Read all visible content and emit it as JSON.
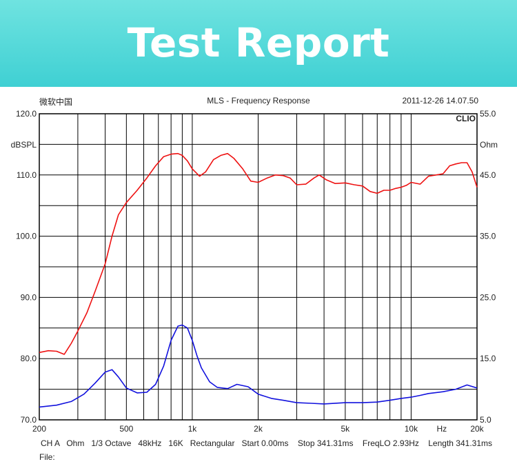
{
  "banner": {
    "title": "Test Report"
  },
  "header": {
    "left": "微软中国",
    "center": "MLS - Frequency Response",
    "right": "2011-12-26 14.07.50"
  },
  "brand_mark": "CLIO",
  "footer": {
    "line1": "CH A   Ohm   1/3 Octave   48kHz   16K   Rectangular   Start 0.00ms    Stop 341.31ms    FreqLO 2.93Hz    Length 341.31ms",
    "line2": "File:"
  },
  "colors": {
    "banner": "#47d3d6",
    "spl_curve": "#ee1111",
    "impedance_curve": "#1111dd",
    "grid": "#000000"
  },
  "chart_data": {
    "type": "line",
    "title": "MLS - Frequency Response",
    "x_scale": "log",
    "xlim": [
      200,
      20000
    ],
    "x_tick_values": [
      200,
      500,
      1000,
      2000,
      5000,
      10000,
      20000
    ],
    "x_tick_labels": [
      "200",
      "500",
      "1k",
      "2k",
      "5k",
      "10k",
      "20k"
    ],
    "x_unit_label": "Hz",
    "x_grid": [
      200,
      300,
      400,
      500,
      600,
      700,
      800,
      900,
      1000,
      2000,
      3000,
      4000,
      5000,
      6000,
      7000,
      8000,
      9000,
      10000,
      20000
    ],
    "ylabel_left": "dBSPL",
    "ylim_left": [
      70,
      120
    ],
    "y_left_tick_values": [
      70,
      80,
      90,
      100,
      110,
      120
    ],
    "y_left_tick_labels": [
      "70.0",
      "80.0",
      "90.0",
      "100.0",
      "110.0",
      "120.0"
    ],
    "ylabel_right": "Ohm",
    "ylim_right": [
      5,
      55
    ],
    "y_right_tick_values": [
      5,
      15,
      25,
      35,
      45,
      55
    ],
    "y_right_tick_labels": [
      "5.0",
      "15.0",
      "25.0",
      "35.0",
      "45.0",
      "55.0"
    ],
    "y_grid_left": [
      75,
      80,
      85,
      90,
      95,
      100,
      105,
      110,
      115
    ],
    "grid": true,
    "series": [
      {
        "axis": "left",
        "x": [
          200,
          220,
          240,
          260,
          280,
          300,
          330,
          360,
          400,
          430,
          460,
          500,
          560,
          620,
          680,
          740,
          800,
          860,
          900,
          950,
          1000,
          1080,
          1150,
          1250,
          1350,
          1450,
          1550,
          1700,
          1850,
          2000,
          2200,
          2400,
          2600,
          2800,
          3000,
          3300,
          3600,
          3800,
          4100,
          4500,
          5000,
          5500,
          6000,
          6500,
          7000,
          7500,
          8000,
          8500,
          9000,
          9500,
          10000,
          11000,
          12000,
          13000,
          14000,
          15000,
          16000,
          17000,
          18000,
          19000,
          20000
        ],
        "y": [
          81.0,
          81.3,
          81.2,
          80.7,
          82.5,
          84.5,
          87.5,
          91.0,
          95.5,
          100.0,
          103.5,
          105.5,
          107.5,
          109.5,
          111.5,
          113.0,
          113.4,
          113.5,
          113.2,
          112.3,
          111.0,
          109.8,
          110.5,
          112.5,
          113.2,
          113.5,
          112.7,
          111.0,
          109.0,
          108.8,
          109.5,
          110.0,
          109.9,
          109.5,
          108.4,
          108.5,
          109.5,
          110.0,
          109.2,
          108.6,
          108.7,
          108.4,
          108.2,
          107.3,
          107.0,
          107.5,
          107.5,
          107.8,
          108.0,
          108.3,
          108.8,
          108.5,
          109.8,
          110.0,
          110.2,
          111.5,
          111.8,
          112.0,
          112.0,
          110.5,
          108.0
        ]
      },
      {
        "axis": "right",
        "x": [
          200,
          240,
          280,
          320,
          360,
          400,
          430,
          460,
          500,
          560,
          620,
          680,
          740,
          800,
          860,
          900,
          950,
          1000,
          1050,
          1100,
          1200,
          1300,
          1450,
          1600,
          1800,
          2000,
          2300,
          2600,
          3000,
          3500,
          4000,
          5000,
          6000,
          7000,
          8000,
          9000,
          10000,
          11000,
          12000,
          14000,
          16000,
          18000,
          20000
        ],
        "y": [
          7.1,
          7.4,
          8.0,
          9.2,
          11.0,
          12.8,
          13.2,
          12.0,
          10.2,
          9.4,
          9.5,
          10.8,
          13.8,
          18.0,
          20.3,
          20.5,
          20.0,
          18.0,
          15.5,
          13.5,
          11.2,
          10.3,
          10.1,
          10.8,
          10.4,
          9.2,
          8.5,
          8.2,
          7.8,
          7.7,
          7.6,
          7.8,
          7.8,
          7.9,
          8.2,
          8.5,
          8.7,
          9.0,
          9.3,
          9.6,
          10.0,
          10.7,
          10.2
        ]
      }
    ]
  }
}
